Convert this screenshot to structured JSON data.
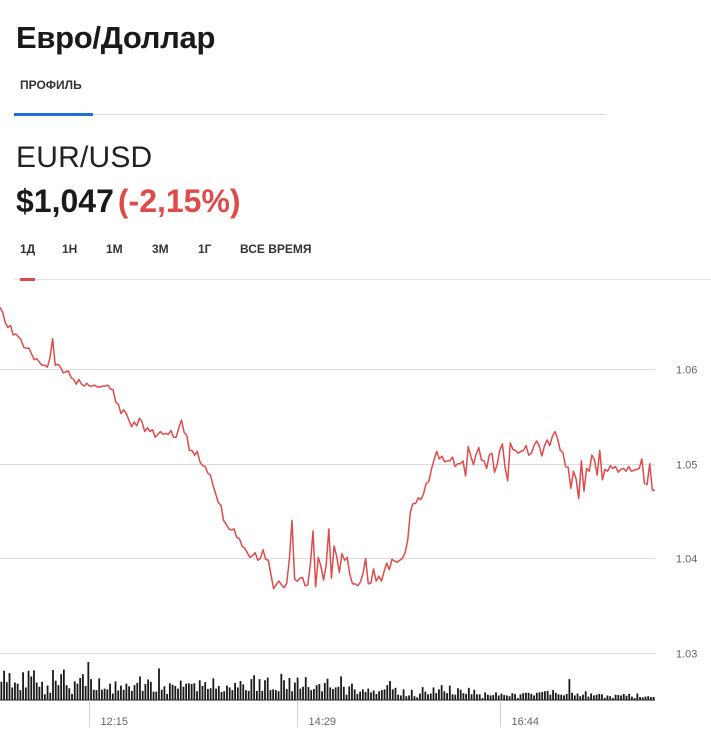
{
  "header": {
    "title": "Евро/Доллар"
  },
  "tabs": [
    {
      "label": "ПРОФИЛЬ",
      "active": true
    }
  ],
  "quote": {
    "pair": "EUR/USD",
    "price": "$1,047",
    "change": "(-2,15%)"
  },
  "periods": [
    {
      "label": "1Д",
      "active": true
    },
    {
      "label": "1Н",
      "active": false
    },
    {
      "label": "1М",
      "active": false
    },
    {
      "label": "3М",
      "active": false
    },
    {
      "label": "1Г",
      "active": false
    },
    {
      "label": "ВСЕ ВРЕМЯ",
      "active": false
    }
  ],
  "colors": {
    "line": "#e04a4a",
    "accent_tab": "#1d6fd6",
    "grid": "#dcdcdc",
    "volume": "#1a1a1a"
  },
  "chart_data": {
    "type": "line",
    "y_ticks": [
      "1.06",
      "1.05",
      "1.04",
      "1.03"
    ],
    "y_tick_values": [
      1.06,
      1.05,
      1.04,
      1.03
    ],
    "x_ticks": [
      "12:15",
      "14:29",
      "16:44"
    ],
    "x_tick_indices": [
      34,
      113,
      190
    ],
    "ylim": [
      1.0206,
      1.0693
    ],
    "grid": true,
    "series": [
      {
        "values": [
          1.0665,
          1.066,
          1.0649,
          1.0644,
          1.0646,
          1.0636,
          1.0637,
          1.0634,
          1.0631,
          1.0623,
          1.0622,
          1.0622,
          1.0616,
          1.061,
          1.0611,
          1.0607,
          1.0604,
          1.0604,
          1.0602,
          1.0612,
          1.0632,
          1.0604,
          1.0605,
          1.0602,
          1.0596,
          1.0597,
          1.0598,
          1.0591,
          1.0589,
          1.0584,
          1.0589,
          1.0584,
          1.0582,
          1.0585,
          1.0582,
          1.0582,
          1.0583,
          1.0581,
          1.0581,
          1.0582,
          1.0582,
          1.0583,
          1.0579,
          1.0578,
          1.0565,
          1.0563,
          1.0553,
          1.0557,
          1.0553,
          1.0546,
          1.0539,
          1.0544,
          1.054,
          1.0548,
          1.0544,
          1.0534,
          1.0538,
          1.0534,
          1.0536,
          1.0528,
          1.0531,
          1.0534,
          1.0531,
          1.0532,
          1.0531,
          1.0535,
          1.0528,
          1.0528,
          1.0538,
          1.0546,
          1.0533,
          1.053,
          1.0514,
          1.0514,
          1.0509,
          1.0513,
          1.0502,
          1.0498,
          1.0497,
          1.049,
          1.0488,
          1.0477,
          1.0468,
          1.0459,
          1.0456,
          1.044,
          1.0436,
          1.0431,
          1.043,
          1.0431,
          1.0422,
          1.0421,
          1.0413,
          1.0411,
          1.0406,
          1.0401,
          1.0403,
          1.0406,
          1.0398,
          1.04,
          1.0409,
          1.0399,
          1.0398,
          1.0383,
          1.0368,
          1.0372,
          1.0376,
          1.0372,
          1.0369,
          1.0374,
          1.0399,
          1.044,
          1.0378,
          1.0376,
          1.0379,
          1.038,
          1.0371,
          1.0372,
          1.0394,
          1.0429,
          1.037,
          1.0401,
          1.0392,
          1.0377,
          1.0393,
          1.0431,
          1.0379,
          1.0413,
          1.0402,
          1.0385,
          1.0405,
          1.0398,
          1.0401,
          1.0383,
          1.0373,
          1.0373,
          1.0371,
          1.0375,
          1.0384,
          1.04,
          1.0373,
          1.0374,
          1.0389,
          1.0376,
          1.0381,
          1.0376,
          1.0386,
          1.0395,
          1.0388,
          1.0399,
          1.0397,
          1.0396,
          1.0398,
          1.04,
          1.0406,
          1.0419,
          1.0449,
          1.0458,
          1.0458,
          1.0464,
          1.0462,
          1.0468,
          1.0479,
          1.0481,
          1.0494,
          1.0504,
          1.0513,
          1.0505,
          1.0508,
          1.0502,
          1.0503,
          1.0503,
          1.0507,
          1.0497,
          1.05,
          1.05,
          1.0503,
          1.0487,
          1.0518,
          1.0508,
          1.0499,
          1.051,
          1.0517,
          1.0504,
          1.0503,
          1.0495,
          1.0509,
          1.0511,
          1.0491,
          1.0499,
          1.0514,
          1.0521,
          1.0496,
          1.0482,
          1.0522,
          1.0515,
          1.0514,
          1.0511,
          1.0513,
          1.0514,
          1.0519,
          1.0509,
          1.0511,
          1.0519,
          1.0524,
          1.0519,
          1.0508,
          1.0519,
          1.0525,
          1.0519,
          1.0529,
          1.0534,
          1.0526,
          1.0514,
          1.0512,
          1.0497,
          1.0496,
          1.0474,
          1.0492,
          1.0484,
          1.0463,
          1.0503,
          1.0471,
          1.0495,
          1.0492,
          1.0509,
          1.0504,
          1.0488,
          1.0514,
          1.0483,
          1.0494,
          1.0492,
          1.0498,
          1.0495,
          1.0497,
          1.0491,
          1.0494,
          1.0495,
          1.0492,
          1.0497,
          1.0492,
          1.0493,
          1.0494,
          1.0495,
          1.0505,
          1.0479,
          1.0478,
          1.05,
          1.0472,
          1.0472
        ]
      }
    ],
    "volume": [
      0.48,
      0.77,
      0.47,
      0.71,
      0.33,
      0.46,
      0.43,
      0.26,
      0.73,
      0.33,
      0.77,
      0.62,
      0.78,
      0.46,
      0.35,
      0.48,
      0.15,
      0.38,
      0.19,
      0.79,
      0.51,
      0.39,
      0.68,
      0.8,
      0.39,
      0.31,
      0.16,
      0.49,
      0.43,
      0.58,
      0.68,
      0.37,
      1.0,
      0.55,
      0.27,
      0.26,
      0.57,
      0.27,
      0.3,
      0.28,
      0.43,
      0.17,
      0.49,
      0.25,
      0.38,
      0.27,
      0.43,
      0.36,
      0.24,
      0.39,
      0.45,
      0.62,
      0.24,
      0.42,
      0.54,
      0.48,
      0.22,
      0.22,
      0.83,
      0.27,
      0.36,
      0.16,
      0.44,
      0.4,
      0.37,
      0.3,
      0.51,
      0.35,
      0.43,
      0.44,
      0.42,
      0.44,
      0.23,
      0.52,
      0.37,
      0.47,
      0.29,
      0.31,
      0.57,
      0.3,
      0.37,
      0.21,
      0.23,
      0.38,
      0.33,
      0.26,
      0.45,
      0.33,
      0.5,
      0.41,
      0.26,
      0.24,
      0.55,
      0.65,
      0.24,
      0.55,
      0.24,
      0.52,
      0.59,
      0.26,
      0.28,
      0.26,
      0.23,
      0.69,
      0.52,
      0.29,
      0.58,
      0.23,
      0.46,
      0.59,
      0.3,
      0.35,
      0.6,
      0.34,
      0.26,
      0.29,
      0.39,
      0.42,
      0.23,
      0.45,
      0.56,
      0.33,
      0.29,
      0.33,
      0.35,
      0.62,
      0.35,
      0.14,
      0.36,
      0.43,
      0.28,
      0.16,
      0.22,
      0.28,
      0.21,
      0.3,
      0.2,
      0.25,
      0.16,
      0.23,
      0.26,
      0.28,
      0.39,
      0.5,
      0.28,
      0.32,
      0.14,
      0.12,
      0.28,
      0.1,
      0.12,
      0.27,
      0.1,
      0.07,
      0.17,
      0.34,
      0.22,
      0.15,
      0.17,
      0.33,
      0.18,
      0.28,
      0.39,
      0.23,
      0.18,
      0.38,
      0.15,
      0.14,
      0.31,
      0.27,
      0.18,
      0.16,
      0.32,
      0.15,
      0.27,
      0.15,
      0.15,
      0.05,
      0.2,
      0.14,
      0.12,
      0.13,
      0.2,
      0.12,
      0.17,
      0.13,
      0.12,
      0.1,
      0.18,
      0.16,
      0.05,
      0.15,
      0.18,
      0.19,
      0.19,
      0.16,
      0.12,
      0.19,
      0.2,
      0.21,
      0.23,
      0.24,
      0.14,
      0.26,
      0.19,
      0.15,
      0.14,
      0.12,
      0.16,
      0.55,
      0.19,
      0.12,
      0.17,
      0.1,
      0.14,
      0.23,
      0.09,
      0.17,
      0.12,
      0.14,
      0.16,
      0.15,
      0.06,
      0.12,
      0.1,
      0.05,
      0.14,
      0.13,
      0.12,
      0.16,
      0.11,
      0.16,
      0.09,
      0.05,
      0.17,
      0.08,
      0.07,
      0.09,
      0.1,
      0.08,
      0.08
    ]
  }
}
